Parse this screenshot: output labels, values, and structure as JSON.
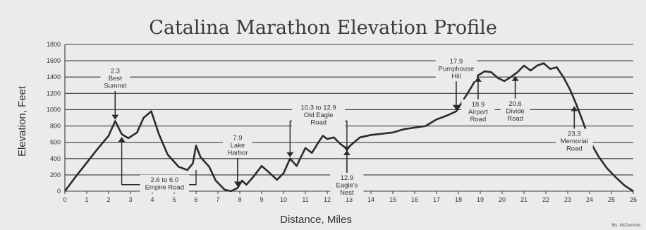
{
  "chart_data": {
    "type": "line",
    "title": "Catalina Marathon Elevation Profile",
    "xlabel": "Distance, Miles",
    "ylabel": "Elevation, Feet",
    "xlim": [
      0,
      26
    ],
    "ylim": [
      0,
      1800
    ],
    "xticks": [
      "0",
      "1",
      "2",
      "3",
      "4",
      "5",
      "6",
      "7",
      "8",
      "9",
      "10",
      "11",
      "12",
      "13",
      "14",
      "15",
      "16",
      "17",
      "18",
      "19",
      "20",
      "21",
      "22",
      "23",
      "24",
      "25",
      "26"
    ],
    "yticks": [
      "0",
      "200",
      "400",
      "600",
      "800",
      "1000",
      "1200",
      "1400",
      "1600",
      "1800"
    ],
    "grid": true,
    "series": [
      {
        "points": [
          [
            0,
            0
          ],
          [
            0.5,
            180
          ],
          [
            1,
            350
          ],
          [
            1.5,
            520
          ],
          [
            2,
            680
          ],
          [
            2.3,
            860
          ],
          [
            2.6,
            700
          ],
          [
            2.9,
            650
          ],
          [
            3.3,
            720
          ],
          [
            3.6,
            900
          ],
          [
            3.95,
            980
          ],
          [
            4.3,
            700
          ],
          [
            4.7,
            450
          ],
          [
            5.2,
            300
          ],
          [
            5.6,
            260
          ],
          [
            5.85,
            340
          ],
          [
            6.0,
            560
          ],
          [
            6.2,
            420
          ],
          [
            6.6,
            300
          ],
          [
            6.9,
            130
          ],
          [
            7.3,
            20
          ],
          [
            7.6,
            0
          ],
          [
            7.9,
            40
          ],
          [
            8.1,
            130
          ],
          [
            8.3,
            80
          ],
          [
            8.6,
            170
          ],
          [
            9.0,
            310
          ],
          [
            9.3,
            240
          ],
          [
            9.7,
            140
          ],
          [
            10.0,
            220
          ],
          [
            10.3,
            400
          ],
          [
            10.6,
            310
          ],
          [
            11.0,
            530
          ],
          [
            11.3,
            470
          ],
          [
            11.6,
            600
          ],
          [
            11.8,
            680
          ],
          [
            12.0,
            640
          ],
          [
            12.3,
            660
          ],
          [
            12.6,
            580
          ],
          [
            12.9,
            520
          ],
          [
            13.1,
            570
          ],
          [
            13.5,
            660
          ],
          [
            14,
            690
          ],
          [
            15,
            720
          ],
          [
            15.5,
            760
          ],
          [
            16,
            780
          ],
          [
            16.5,
            800
          ],
          [
            17,
            880
          ],
          [
            17.5,
            930
          ],
          [
            17.9,
            980
          ],
          [
            18.3,
            1150
          ],
          [
            18.6,
            1280
          ],
          [
            18.9,
            1420
          ],
          [
            19.2,
            1470
          ],
          [
            19.5,
            1460
          ],
          [
            19.8,
            1390
          ],
          [
            20.1,
            1350
          ],
          [
            20.4,
            1400
          ],
          [
            20.7,
            1460
          ],
          [
            21.0,
            1540
          ],
          [
            21.3,
            1480
          ],
          [
            21.6,
            1540
          ],
          [
            21.9,
            1570
          ],
          [
            22.2,
            1500
          ],
          [
            22.5,
            1520
          ],
          [
            22.8,
            1400
          ],
          [
            23.1,
            1250
          ],
          [
            23.4,
            1060
          ],
          [
            23.7,
            850
          ],
          [
            24.0,
            620
          ],
          [
            24.4,
            430
          ],
          [
            24.8,
            280
          ],
          [
            25.2,
            170
          ],
          [
            25.6,
            70
          ],
          [
            26,
            0
          ]
        ]
      }
    ],
    "annotations": [
      {
        "lines": [
          "2.3",
          "Best",
          "Summit"
        ],
        "x": 2.3,
        "y": 860,
        "arrow": "down"
      },
      {
        "lines": [
          "2.6 to 6.0",
          "Empire Road"
        ],
        "x": 2.6,
        "x2": 6.0,
        "y": 700,
        "arrow": "bracket-up"
      },
      {
        "lines": [
          "7.9",
          "Lake",
          "Harbor"
        ],
        "x": 7.9,
        "y": 40,
        "arrow": "down"
      },
      {
        "lines": [
          "10.3 to 12.9",
          "Old Eagle",
          "Road"
        ],
        "x": 10.3,
        "x2": 12.9,
        "y": 400,
        "arrow": "bracket-down"
      },
      {
        "lines": [
          "12.9",
          "Eagle's",
          "Nest"
        ],
        "x": 12.9,
        "y": 520,
        "arrow": "up"
      },
      {
        "lines": [
          "17.9",
          "Pumphouse",
          "Hill"
        ],
        "x": 17.9,
        "y": 980,
        "arrow": "down"
      },
      {
        "lines": [
          "18.9",
          "Airport",
          "Road"
        ],
        "x": 18.9,
        "y": 1420,
        "arrow": "up"
      },
      {
        "lines": [
          "20.6",
          "Divide",
          "Road"
        ],
        "x": 20.6,
        "y": 1430,
        "arrow": "up"
      },
      {
        "lines": [
          "23.3",
          "Memorial",
          "Road"
        ],
        "x": 23.3,
        "y": 1060,
        "arrow": "up"
      }
    ],
    "credit": "Ms. McDermott"
  },
  "colors": {
    "background": "#e9ebec",
    "grid": "#3a3a3a",
    "line": "#2b2b2b",
    "text": "#333333"
  }
}
